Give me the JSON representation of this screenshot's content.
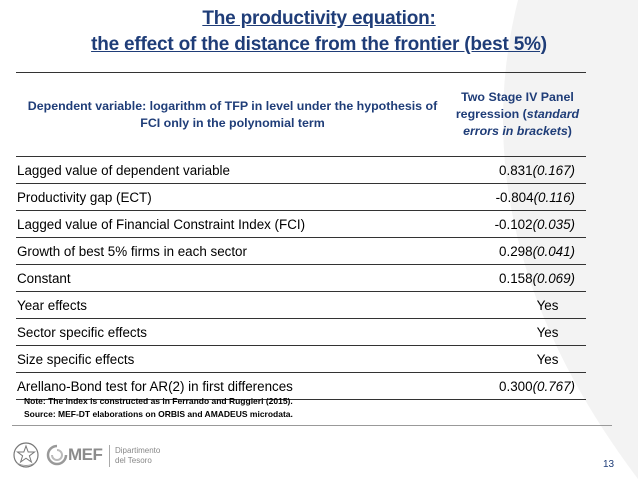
{
  "title": {
    "line1": "The productivity equation:",
    "line2": "the effect of the distance from the frontier (best 5%)"
  },
  "table": {
    "header_left": "Dependent variable: logarithm of TFP in level under the hypothesis of FCI only in the polynomial term",
    "header_right_1": "Two Stage IV Panel regression (",
    "header_right_italic": "standard errors in brackets",
    "header_right_2": ")",
    "rows": [
      {
        "label": "Lagged value of dependent variable",
        "value": "0.831",
        "se": "(0.167)"
      },
      {
        "label": "Productivity gap (ECT)",
        "value": "-0.804",
        "se": "(0.116)"
      },
      {
        "label": "Lagged value of Financial Constraint Index (FCI)",
        "value": "-0.102",
        "se": "(0.035)"
      },
      {
        "label": "Growth of best 5% firms in each sector",
        "value": "0.298",
        "se": "(0.041)"
      },
      {
        "label": "Constant",
        "value": "0.158",
        "se": "(0.069)"
      },
      {
        "label": "Year effects",
        "value": "Yes",
        "se": ""
      },
      {
        "label": "Sector specific effects",
        "value": "Yes",
        "se": ""
      },
      {
        "label": "Size specific effects",
        "value": "Yes",
        "se": ""
      },
      {
        "label": "Arellano-Bond test for  AR(2) in first differences",
        "value": "0.300",
        "se": "(0.767)"
      }
    ]
  },
  "notes": {
    "note": "Note: The index is constructed as in Ferrando and Ruggieri (2015).",
    "source": "Source: MEF-DT elaborations on ORBIS and AMADEUS microdata."
  },
  "footer": {
    "logo_text": "MEF",
    "dept_line1": "Dipartimento",
    "dept_line2": "del Tesoro",
    "page_number": "13"
  },
  "colors": {
    "title": "#1f3d78",
    "background_curve": "#f0f0f0"
  }
}
